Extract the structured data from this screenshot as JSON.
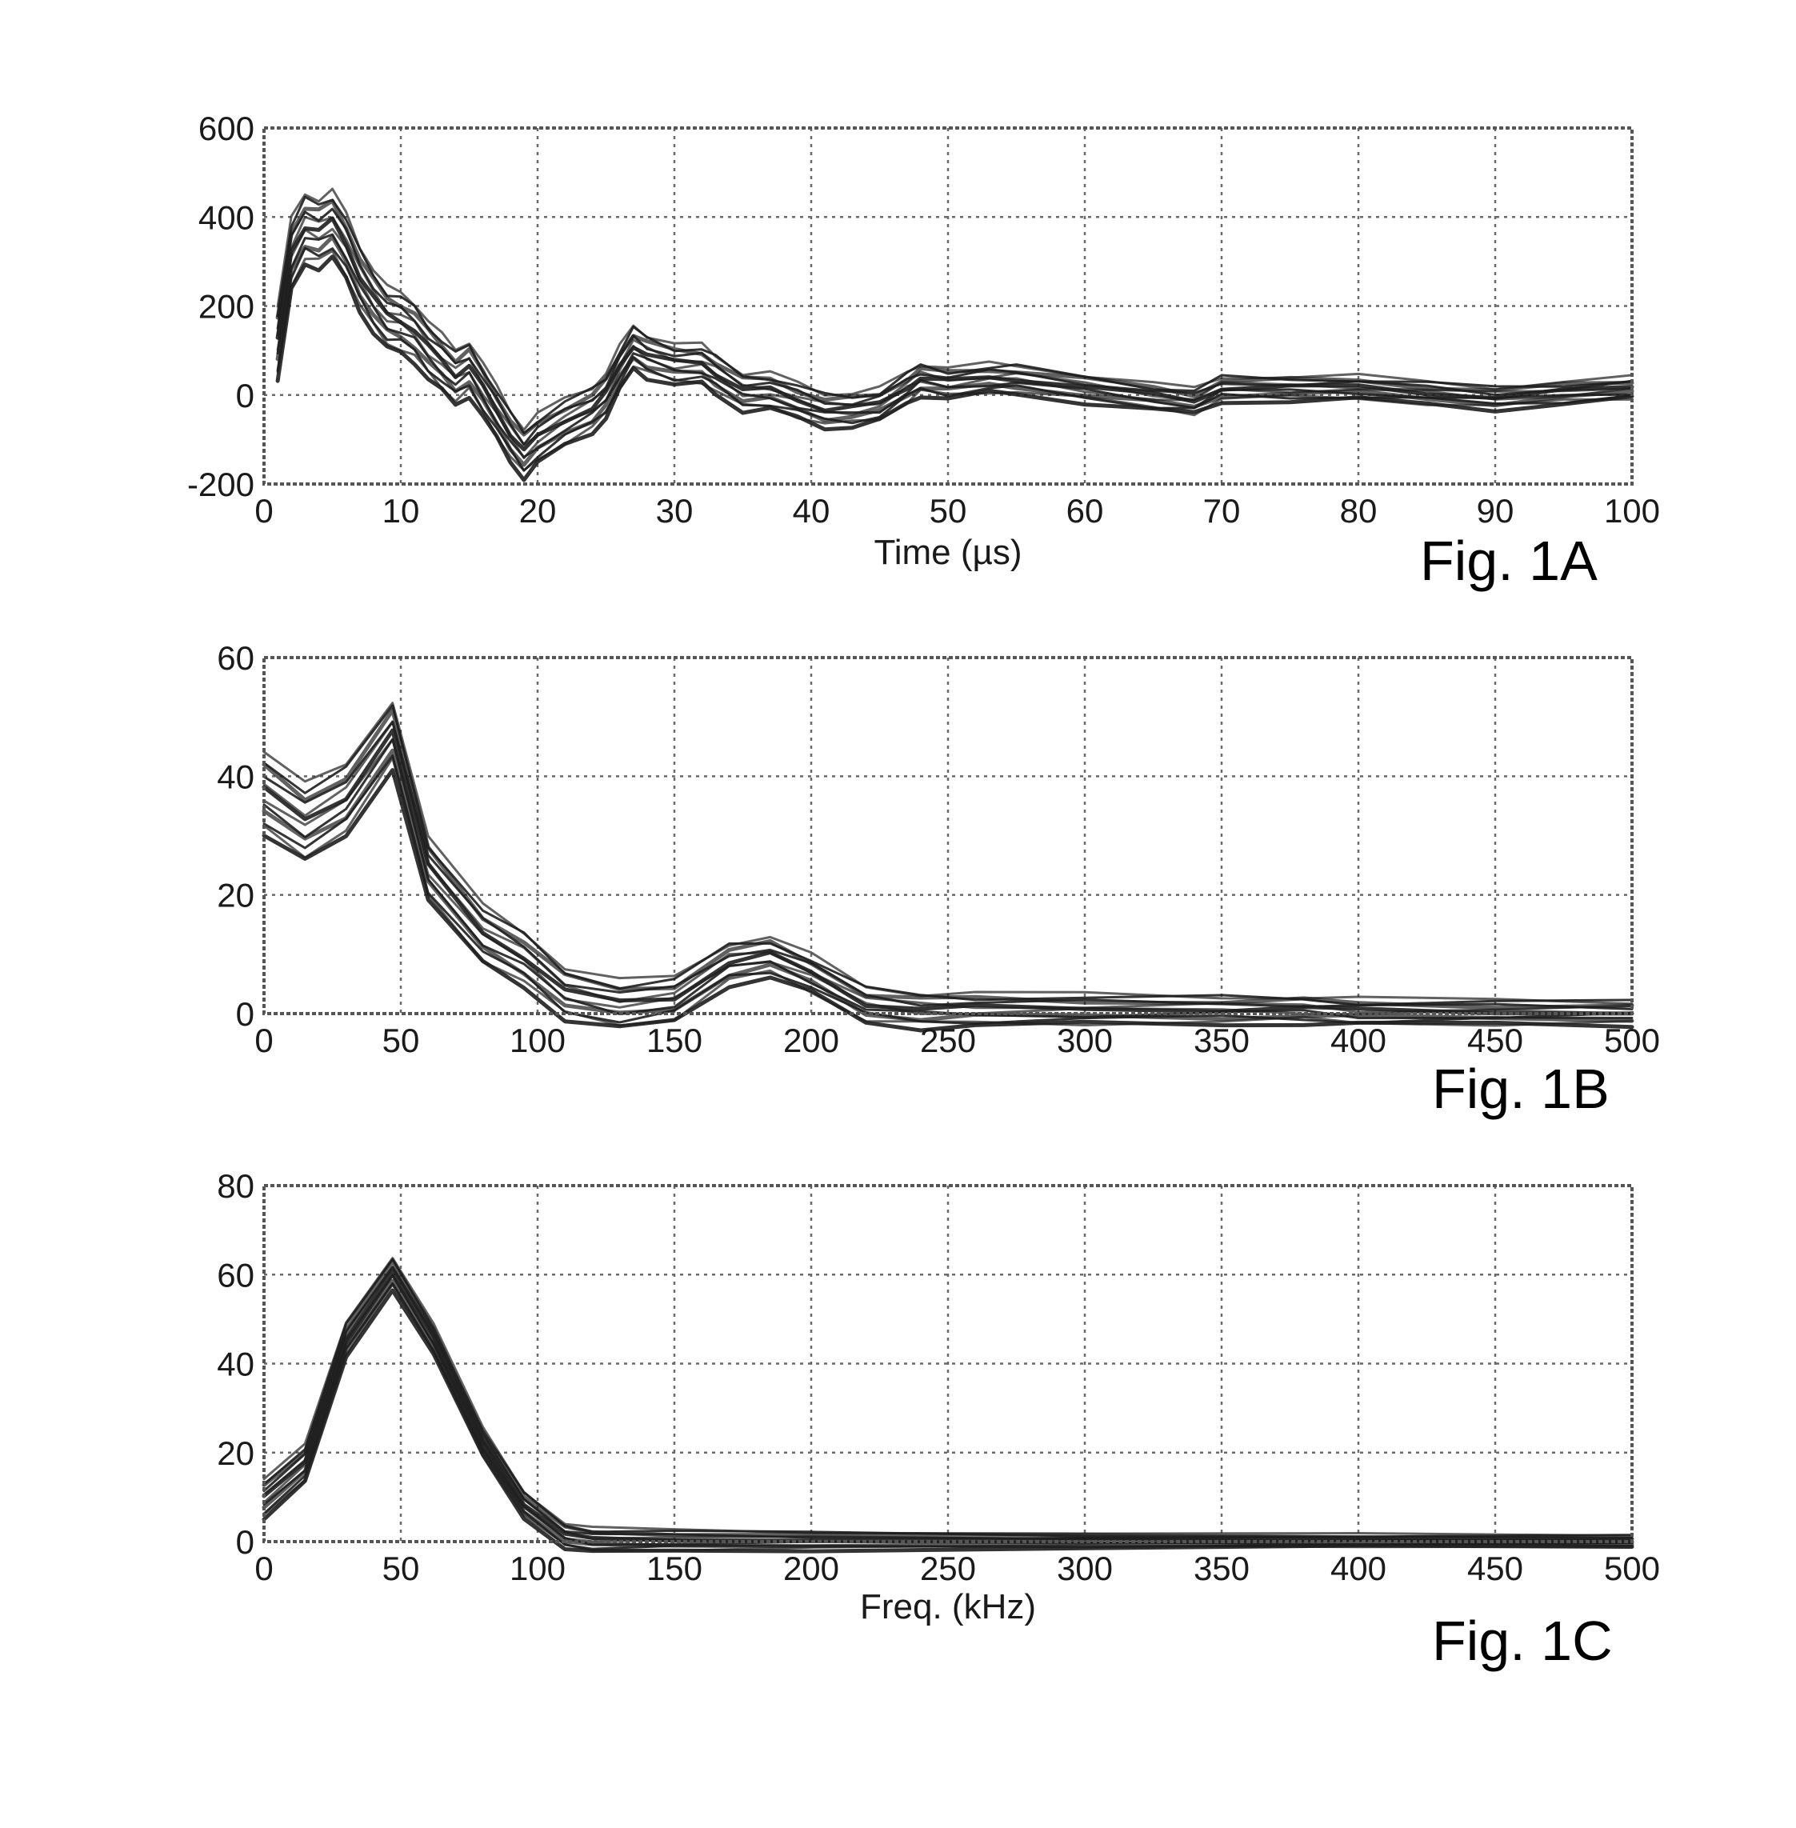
{
  "chart_data": [
    {
      "type": "line",
      "figure_label": "Fig. 1A",
      "xlabel": "Time (µs)",
      "ylabel": "",
      "xlim": [
        0,
        100
      ],
      "ylim": [
        -200,
        600
      ],
      "xticks": [
        0,
        10,
        20,
        30,
        40,
        50,
        60,
        70,
        80,
        90,
        100
      ],
      "yticks": [
        -200,
        0,
        200,
        400,
        600
      ],
      "grid": true,
      "series_count": 12,
      "series": [
        {
          "x": [
            1,
            2,
            3,
            4,
            5,
            6,
            7,
            8,
            9,
            10,
            11,
            12,
            13,
            14,
            15,
            16,
            17,
            18,
            19,
            20,
            22,
            24,
            25,
            26,
            27,
            28,
            30,
            32,
            33,
            35,
            37,
            39,
            41,
            43,
            45,
            47,
            48,
            50,
            53,
            55,
            60,
            65,
            68,
            70,
            75,
            80,
            85,
            90,
            95,
            100
          ],
          "y": [
            100,
            300,
            360,
            350,
            370,
            320,
            250,
            200,
            160,
            150,
            130,
            90,
            60,
            30,
            50,
            0,
            -50,
            -100,
            -140,
            -110,
            -70,
            -40,
            -10,
            50,
            100,
            80,
            60,
            60,
            40,
            0,
            0,
            -20,
            -40,
            -40,
            -30,
            10,
            30,
            20,
            30,
            30,
            10,
            -10,
            -20,
            10,
            10,
            10,
            0,
            -10,
            0,
            10
          ]
        }
      ],
      "band_y": {
        "min_offset": -70,
        "max_offset": 100
      }
    },
    {
      "type": "line",
      "figure_label": "Fig. 1B",
      "xlabel": "",
      "ylabel": "",
      "xlim": [
        0,
        500
      ],
      "ylim": [
        0,
        60
      ],
      "xticks": [
        0,
        50,
        100,
        150,
        200,
        250,
        300,
        350,
        400,
        450,
        500
      ],
      "yticks": [
        0,
        20,
        40,
        60
      ],
      "grid": true,
      "series_count": 12,
      "series": [
        {
          "x": [
            0,
            15,
            30,
            47,
            60,
            80,
            95,
            110,
            130,
            150,
            170,
            185,
            200,
            220,
            240,
            260,
            300,
            350,
            380,
            400,
            450,
            500
          ],
          "y": [
            38,
            33,
            37,
            48,
            25,
            14,
            10,
            4,
            2,
            3,
            9,
            10,
            7,
            2,
            1,
            1,
            1,
            1,
            1,
            0.5,
            0.5,
            0.5
          ]
        }
      ],
      "band_y": {
        "min_offset": -8,
        "max_offset": 6
      }
    },
    {
      "type": "line",
      "figure_label": "Fig. 1C",
      "xlabel": "Freq. (kHz)",
      "ylabel": "",
      "xlim": [
        0,
        500
      ],
      "ylim": [
        0,
        80
      ],
      "xticks": [
        0,
        50,
        100,
        150,
        200,
        250,
        300,
        350,
        400,
        450,
        500
      ],
      "yticks": [
        0,
        20,
        40,
        60,
        80
      ],
      "grid": true,
      "series_count": 12,
      "series": [
        {
          "x": [
            0,
            15,
            30,
            47,
            62,
            80,
            95,
            110,
            120,
            150,
            200,
            300,
            400,
            500
          ],
          "y": [
            9,
            17,
            45,
            60,
            45,
            22,
            8,
            1,
            0,
            0,
            0,
            0,
            0,
            0
          ]
        }
      ],
      "band_y": {
        "min_offset": -4,
        "max_offset": 5
      }
    }
  ]
}
